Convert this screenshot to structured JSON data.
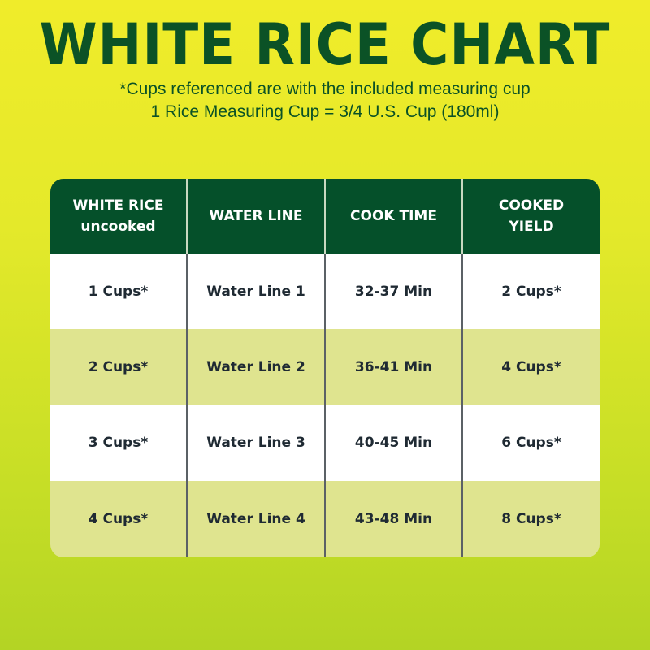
{
  "title": "WHITE RICE CHART",
  "subtitle_lines": [
    "*Cups referenced are with the included measuring cup",
    "1 Rice Measuring Cup = 3/4 U.S. Cup (180ml)"
  ],
  "colors": {
    "header": "#05502a",
    "title": "#0b5226",
    "alt_row": "#dfe48f",
    "background_top": "#f0ec2a",
    "background_bottom": "#b3d424"
  },
  "table": {
    "headers": [
      "WHITE RICE\nuncooked",
      "WATER LINE",
      "COOK TIME",
      "COOKED\nYIELD"
    ],
    "rows": [
      [
        "1 Cups*",
        "Water Line 1",
        "32-37 Min",
        "2 Cups*"
      ],
      [
        "2 Cups*",
        "Water Line 2",
        "36-41 Min",
        "4 Cups*"
      ],
      [
        "3 Cups*",
        "Water Line 3",
        "40-45 Min",
        "6 Cups*"
      ],
      [
        "4 Cups*",
        "Water Line 4",
        "43-48 Min",
        "8 Cups*"
      ]
    ]
  }
}
